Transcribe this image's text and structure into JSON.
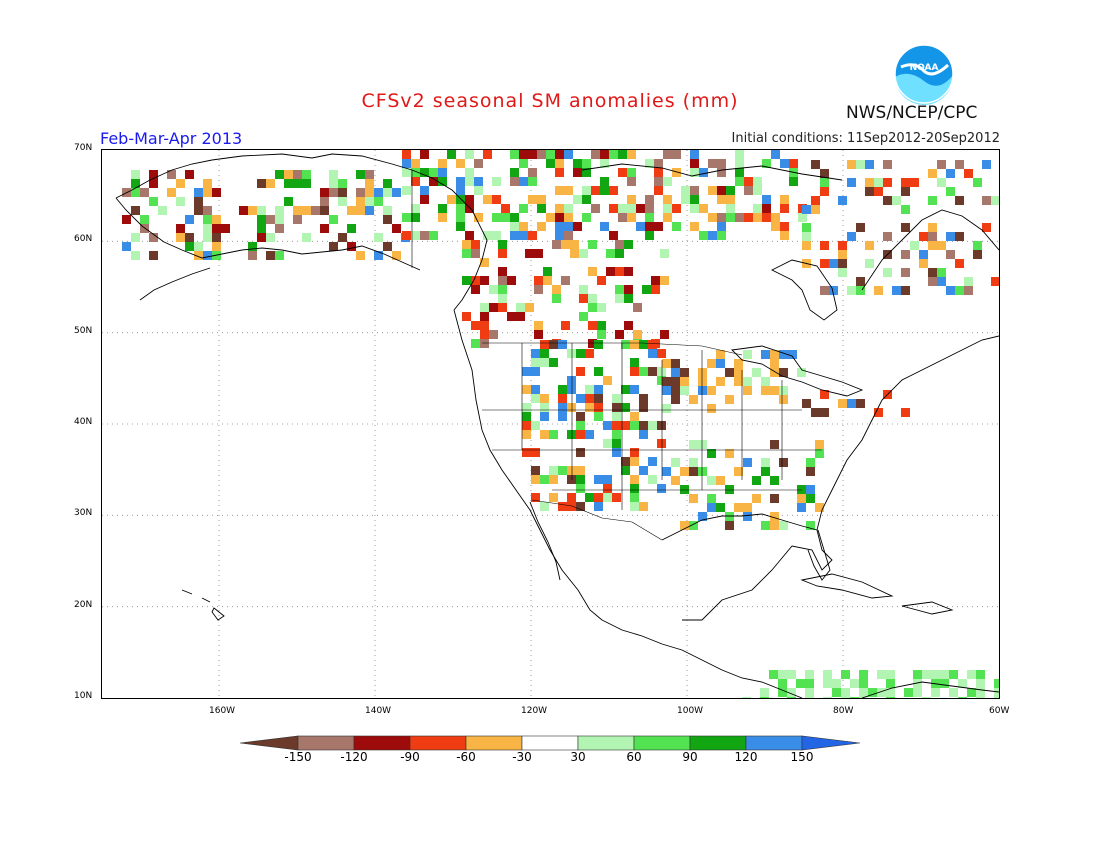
{
  "header": {
    "title": "CFSv2 seasonal SM anomalies (mm)",
    "season": "Feb-Mar-Apr 2013",
    "initial_conditions": "Initial conditions: 11Sep2012-20Sep2012",
    "organization": "NWS/NCEP/CPC",
    "logo_text": "NOAA"
  },
  "map": {
    "lon_labels": [
      "160W",
      "140W",
      "120W",
      "100W",
      "80W",
      "60W"
    ],
    "lat_labels": [
      "70N",
      "60N",
      "50N",
      "40N",
      "30N",
      "20N",
      "10N"
    ]
  },
  "legend": {
    "labels": [
      "-150",
      "-120",
      "-90",
      "-60",
      "-30",
      "30",
      "60",
      "90",
      "120",
      "150"
    ],
    "colors": [
      "#6b3a2a",
      "#a6776a",
      "#9e0b0b",
      "#f03c12",
      "#f8b445",
      "#ffffff",
      "#b2f5b2",
      "#52e252",
      "#12a612",
      "#3a8de6",
      "#2266e6"
    ]
  },
  "colors": {
    "title": "#e01818",
    "season": "#1a1aee",
    "ocean": "#ffffff",
    "coast": "#000000"
  }
}
